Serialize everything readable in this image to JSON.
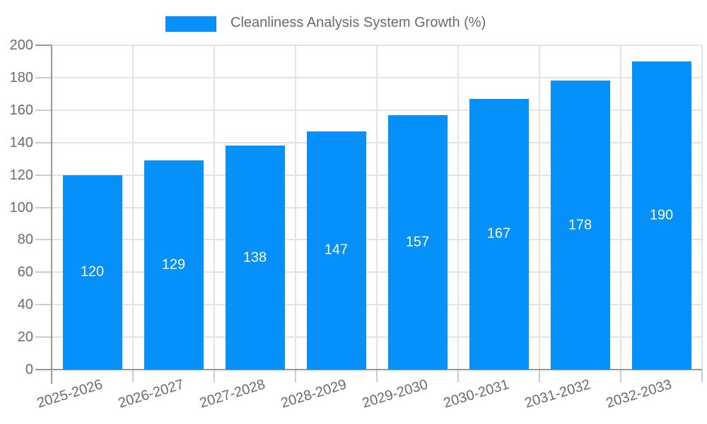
{
  "legend": {
    "label": "Cleanliness Analysis System Growth (%)"
  },
  "colors": {
    "bar": "#0690fa",
    "axis": "#999999",
    "grid": "#e3e3e3",
    "tick_minor": "#cccccc",
    "text": "#6b6b6b",
    "bar_label": "#ffffff",
    "background": "#ffffff"
  },
  "chart_data": {
    "type": "bar",
    "title": "",
    "legend": [
      "Cleanliness Analysis System Growth (%)"
    ],
    "legend_position": "top",
    "categories": [
      "2025-2026",
      "2026-2027",
      "2027-2028",
      "2028-2029",
      "2029-2030",
      "2030-2031",
      "2031-2032",
      "2032-2033"
    ],
    "values": [
      120,
      129,
      138,
      147,
      157,
      167,
      178,
      190
    ],
    "xlabel": "",
    "ylabel": "",
    "ylim": [
      0,
      200
    ],
    "ytick_step": 20,
    "grid": true,
    "grid_vertical": true,
    "bar_label_position": "inside-center",
    "x_label_rotation_deg": -17
  }
}
